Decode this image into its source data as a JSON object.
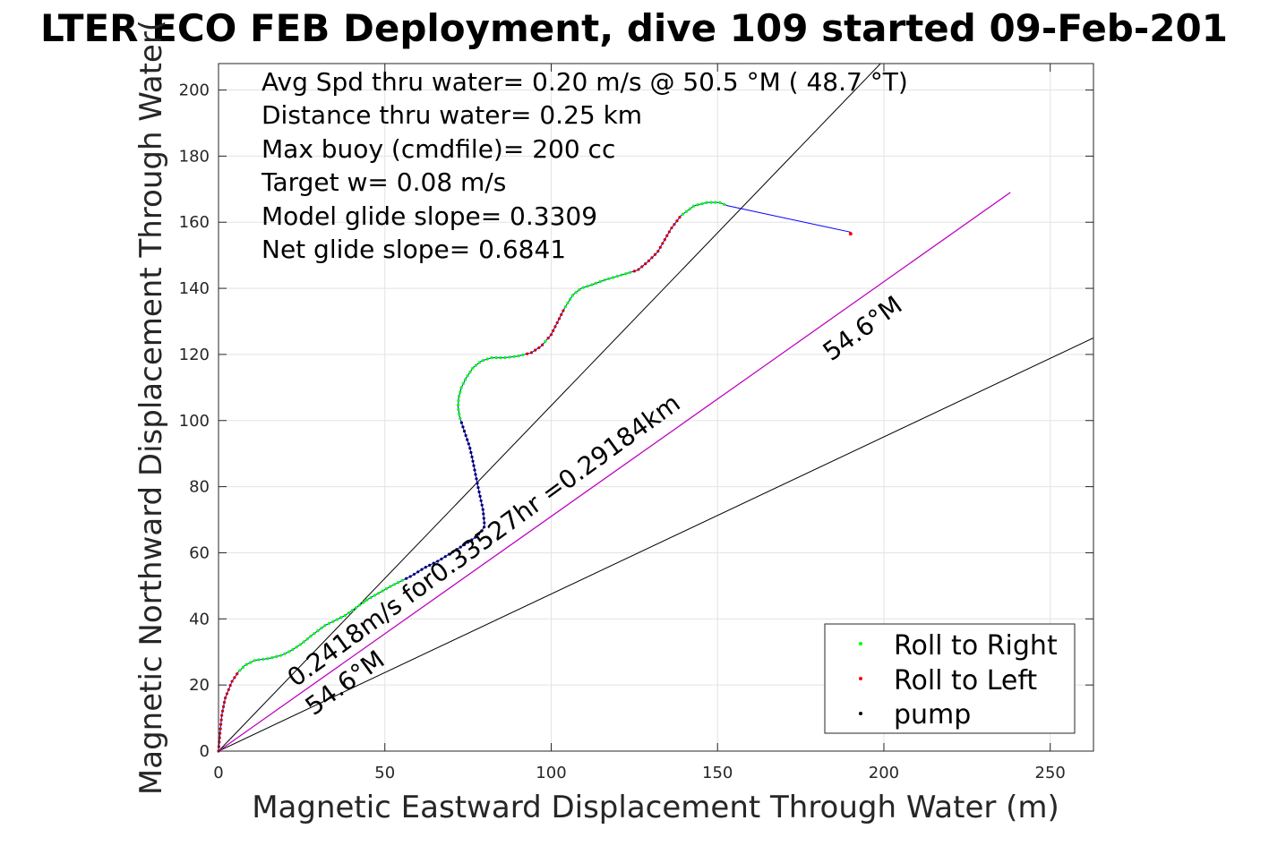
{
  "chart_data": {
    "type": "line",
    "title": "LTER ECO FEB Deployment, dive 109 started 09-Feb-201",
    "xlabel": "Magnetic Eastward Displacement Through Water (m)",
    "ylabel": "Magnetic Northward Displacement Through Water(",
    "xlim": [
      0,
      263
    ],
    "ylim": [
      0,
      208
    ],
    "xticks": [
      0,
      50,
      100,
      150,
      200,
      250
    ],
    "yticks": [
      0,
      20,
      40,
      60,
      80,
      100,
      120,
      140,
      160,
      180,
      200
    ],
    "grid": true,
    "stats": [
      "Avg Spd thru water=  0.20 m/s @  50.5 °M ( 48.7 °T)",
      "Distance thru water=  0.25 km",
      "Max buoy (cmdfile)= 200 cc",
      "Target w= 0.08 m/s",
      "Model glide slope= 0.3309",
      "Net glide slope= 0.6841"
    ],
    "annotations": {
      "current": "0.2418m/s for0.33527hr =0.29184km",
      "heading_low": "54.6°M",
      "heading_high": "54.6°M"
    },
    "track": {
      "name": "track",
      "color": "#0000ff",
      "x": [
        0,
        0.5,
        1,
        2,
        4,
        6,
        8,
        11,
        15,
        19,
        22,
        25,
        28,
        32,
        38,
        45,
        52,
        58,
        62,
        66,
        70,
        74,
        77,
        79,
        80,
        79.5,
        78,
        77,
        76.2,
        75.5,
        74.5,
        73.5,
        72.5,
        72,
        72.2,
        73,
        74.5,
        76.5,
        79,
        82,
        86,
        90,
        94,
        97,
        100,
        102,
        104,
        106.5,
        109,
        112,
        116,
        121,
        126,
        129,
        132,
        134,
        136,
        139,
        143,
        147,
        150.5,
        153,
        190
      ],
      "y": [
        0,
        6,
        11,
        16,
        21,
        24,
        26,
        27.5,
        28,
        29,
        30.5,
        32.5,
        35,
        38,
        41,
        46,
        50,
        53,
        55.5,
        57.5,
        60,
        62.5,
        64.5,
        66.5,
        68,
        73,
        80,
        85,
        89,
        92,
        95,
        98,
        101,
        104,
        107,
        110,
        113,
        116,
        118,
        119,
        119,
        119.5,
        120.5,
        122.5,
        126,
        130,
        134,
        138,
        140,
        141,
        142.5,
        144,
        145.5,
        148,
        151,
        154.5,
        158,
        162,
        165,
        166,
        166,
        165,
        157
      ]
    },
    "legend": [
      {
        "label": "Roll to Right",
        "color": "#00ff00"
      },
      {
        "label": "Roll to Left",
        "color": "#ff0000"
      },
      {
        "label": "pump",
        "color": "#000000"
      }
    ],
    "legend_location": "bottom-right",
    "lines": [
      {
        "color": "#000000",
        "x": [
          0,
          263
        ],
        "y": [
          0,
          125
        ]
      },
      {
        "color": "#000000",
        "x": [
          0,
          199
        ],
        "y": [
          0,
          208
        ]
      },
      {
        "color": "#000000",
        "x": [
          0,
          238
        ],
        "y": [
          0,
          169
        ]
      },
      {
        "color": "#cc00cc",
        "x": [
          0,
          238
        ],
        "y": [
          0,
          169
        ]
      }
    ],
    "end_point": {
      "x": 190,
      "y": 156.5,
      "color": "#ff0000"
    }
  }
}
